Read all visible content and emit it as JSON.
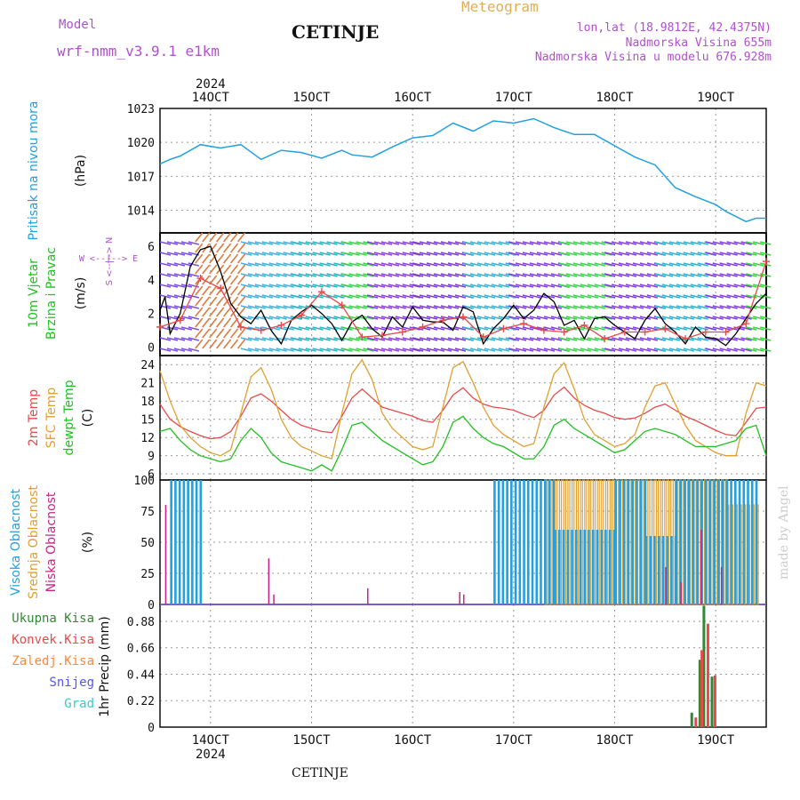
{
  "header": {
    "model_label": "Model",
    "model_name": "wrf-nmm_v3.9.1 e1km",
    "station": "CETINJE",
    "meteogram": "Meteogram",
    "lonlat": "lon,lat (18.9812E, 42.4375N)",
    "altitude": "Nadmorska Visina 655m",
    "model_altitude": "Nadmorska Visina u modelu 676.928m"
  },
  "footer": {
    "station": "CETINJE",
    "watermark": "made by Angel"
  },
  "colors": {
    "pressure": "#22a0e0",
    "wind_black": "#000000",
    "t2m": "#e84a4a",
    "tsfc": "#e0a030",
    "dewpt": "#20c020",
    "high": "#22a0e0",
    "mid": "#e0a030",
    "low": "#cc2288",
    "total": "#338833",
    "conv": "#e84a4a",
    "frz": "#ff8833",
    "snow": "#5555ee",
    "grad": "#33cccc",
    "grid": "#999999"
  },
  "time_axis": {
    "year": "2024",
    "labels": [
      "14OCT",
      "15OCT",
      "16OCT",
      "17OCT",
      "18OCT",
      "19OCT"
    ],
    "start": 13.5,
    "end": 19.5
  },
  "chart_data": [
    {
      "type": "line",
      "title": "",
      "ylabel": "(hPa)",
      "side_label": "Pritisak na nivou mora",
      "ylim": [
        1012,
        1023
      ],
      "yticks": [
        "1023",
        "1020",
        "1017",
        "1014"
      ],
      "series": [
        {
          "x": [
            13.5,
            13.6,
            13.7,
            13.9,
            14.1,
            14.3,
            14.5,
            14.7,
            14.9,
            15.1,
            15.3,
            15.4,
            15.6,
            15.8,
            16.0,
            16.2,
            16.4,
            16.6,
            16.8,
            17.0,
            17.2,
            17.4,
            17.6,
            17.8,
            18.0,
            18.2,
            18.4,
            18.6,
            18.8,
            19.0,
            19.1,
            19.3,
            19.4,
            19.5
          ],
          "values": [
            1018.1,
            1018.5,
            1018.8,
            1019.8,
            1019.5,
            1019.8,
            1018.5,
            1019.3,
            1019.1,
            1018.6,
            1019.3,
            1018.9,
            1018.7,
            1019.6,
            1020.4,
            1020.6,
            1021.7,
            1021.0,
            1021.9,
            1021.7,
            1022.1,
            1021.3,
            1020.7,
            1020.7,
            1019.7,
            1018.7,
            1018.0,
            1016.0,
            1015.2,
            1014.5,
            1013.9,
            1013.0,
            1013.3,
            1013.3
          ]
        }
      ]
    },
    {
      "type": "line",
      "title": "",
      "ylabel": "(m/s)",
      "side_labels": [
        "10m Vjetar",
        "Brzina i Pravac"
      ],
      "compass": "W <--|--> E",
      "compass_v": "S <--|--> N",
      "ylim": [
        -0.5,
        6.8
      ],
      "yticks": [
        "6",
        "4",
        "2",
        "0"
      ],
      "series": [
        {
          "name": "",
          "x": [
            13.5,
            13.55,
            13.6,
            13.7,
            13.8,
            13.9,
            14.0,
            14.1,
            14.2,
            14.3,
            14.4,
            14.5,
            14.6,
            14.7,
            14.8,
            14.9,
            15.0,
            15.1,
            15.2,
            15.3,
            15.4,
            15.5,
            15.6,
            15.7,
            15.8,
            15.9,
            16.0,
            16.1,
            16.2,
            16.3,
            16.4,
            16.5,
            16.6,
            16.7,
            16.8,
            16.9,
            17.0,
            17.1,
            17.2,
            17.3,
            17.4,
            17.5,
            17.6,
            17.7,
            17.8,
            17.9,
            18.0,
            18.1,
            18.2,
            18.3,
            18.4,
            18.5,
            18.6,
            18.7,
            18.8,
            18.9,
            19.0,
            19.1,
            19.2,
            19.3,
            19.4,
            19.5
          ],
          "values": [
            2.2,
            3.0,
            0.8,
            2.0,
            4.8,
            5.8,
            6.0,
            4.5,
            2.6,
            1.8,
            1.4,
            2.2,
            1.0,
            0.2,
            1.6,
            2.1,
            2.5,
            2.0,
            1.4,
            0.4,
            1.5,
            1.9,
            1.1,
            0.6,
            1.8,
            1.2,
            2.4,
            1.6,
            1.5,
            1.5,
            1.0,
            2.4,
            2.1,
            0.2,
            1.1,
            1.7,
            2.5,
            1.7,
            2.2,
            3.2,
            2.7,
            1.3,
            1.6,
            0.5,
            1.7,
            1.8,
            1.3,
            0.9,
            0.5,
            1.6,
            2.3,
            1.4,
            0.9,
            0.2,
            1.2,
            0.6,
            0.5,
            0.1,
            0.8,
            1.7,
            2.6,
            3.2
          ]
        },
        {
          "name": "",
          "x": [
            13.5,
            13.7,
            13.9,
            14.1,
            14.3,
            14.5,
            14.7,
            14.9,
            15.1,
            15.3,
            15.5,
            15.7,
            15.9,
            16.1,
            16.3,
            16.5,
            16.7,
            16.9,
            17.1,
            17.3,
            17.5,
            17.7,
            17.9,
            18.1,
            18.3,
            18.5,
            18.7,
            18.9,
            19.1,
            19.3,
            19.5
          ],
          "values": [
            1.2,
            1.6,
            4.1,
            3.5,
            1.2,
            1.0,
            1.3,
            1.9,
            3.3,
            2.5,
            0.6,
            0.7,
            0.9,
            1.2,
            1.6,
            1.8,
            0.6,
            1.1,
            1.4,
            1.0,
            0.9,
            1.3,
            0.5,
            0.9,
            0.9,
            1.1,
            0.5,
            0.9,
            0.9,
            1.4,
            5.1
          ]
        }
      ]
    },
    {
      "type": "line",
      "title": "",
      "ylabel": "(C)",
      "side_labels": [
        "2m Temp",
        "SFC Temp",
        "dewpt Temp"
      ],
      "ylim": [
        5,
        25.5
      ],
      "yticks": [
        "24",
        "21",
        "18",
        "15",
        "12",
        "9",
        "6"
      ],
      "series": [
        {
          "name": "2m Temp",
          "x": [
            13.5,
            13.6,
            13.7,
            13.8,
            13.9,
            14.0,
            14.1,
            14.2,
            14.3,
            14.4,
            14.5,
            14.6,
            14.7,
            14.8,
            14.9,
            15.0,
            15.1,
            15.2,
            15.3,
            15.4,
            15.5,
            15.6,
            15.7,
            15.8,
            15.9,
            16.0,
            16.1,
            16.2,
            16.3,
            16.4,
            16.5,
            16.6,
            16.7,
            16.8,
            16.9,
            17.0,
            17.1,
            17.2,
            17.3,
            17.4,
            17.5,
            17.6,
            17.7,
            17.8,
            17.9,
            18.0,
            18.1,
            18.2,
            18.3,
            18.4,
            18.5,
            18.6,
            18.7,
            18.8,
            18.9,
            19.0,
            19.1,
            19.2,
            19.3,
            19.4,
            19.5
          ],
          "values": [
            17.5,
            15.0,
            13.8,
            13.0,
            12.3,
            11.8,
            12.0,
            13.0,
            15.5,
            18.5,
            19.2,
            18.0,
            16.5,
            15.0,
            14.0,
            13.5,
            13.0,
            12.8,
            15.5,
            18.5,
            20.0,
            18.5,
            17.0,
            16.5,
            16.0,
            15.5,
            14.8,
            14.5,
            16.5,
            19.0,
            20.2,
            18.5,
            17.5,
            17.0,
            16.8,
            16.5,
            15.8,
            15.3,
            16.5,
            19.0,
            20.3,
            18.5,
            17.3,
            16.5,
            16.0,
            15.3,
            15.0,
            15.2,
            16.0,
            17.0,
            17.5,
            16.5,
            15.5,
            14.8,
            14.0,
            13.2,
            12.5,
            12.3,
            14.5,
            16.8,
            17.0
          ]
        },
        {
          "name": "SFC Temp",
          "x": [
            13.5,
            13.6,
            13.7,
            13.8,
            13.9,
            14.0,
            14.1,
            14.2,
            14.3,
            14.4,
            14.5,
            14.6,
            14.7,
            14.8,
            14.9,
            15.0,
            15.1,
            15.2,
            15.3,
            15.4,
            15.5,
            15.6,
            15.7,
            15.8,
            15.9,
            16.0,
            16.1,
            16.2,
            16.3,
            16.4,
            16.5,
            16.6,
            16.7,
            16.8,
            16.9,
            17.0,
            17.1,
            17.2,
            17.3,
            17.4,
            17.5,
            17.6,
            17.7,
            17.8,
            17.9,
            18.0,
            18.1,
            18.2,
            18.3,
            18.4,
            18.5,
            18.6,
            18.7,
            18.8,
            18.9,
            19.0,
            19.1,
            19.2,
            19.3,
            19.4,
            19.5
          ],
          "values": [
            23.0,
            18.0,
            14.0,
            12.0,
            10.5,
            9.5,
            9.0,
            10.0,
            16.0,
            22.0,
            23.5,
            20.0,
            15.0,
            12.0,
            10.5,
            9.8,
            9.0,
            8.5,
            16.0,
            22.5,
            24.8,
            21.5,
            16.0,
            13.5,
            12.0,
            10.5,
            10.0,
            10.5,
            17.0,
            23.5,
            24.5,
            21.0,
            17.0,
            14.0,
            12.5,
            11.5,
            10.5,
            11.0,
            17.0,
            22.5,
            24.3,
            20.0,
            15.0,
            12.5,
            11.5,
            10.5,
            11.0,
            12.5,
            17.0,
            20.5,
            21.0,
            17.5,
            14.0,
            11.5,
            10.5,
            9.5,
            9.0,
            9.0,
            16.0,
            21.0,
            20.5
          ]
        },
        {
          "name": "dewpt Temp",
          "x": [
            13.5,
            13.6,
            13.7,
            13.8,
            13.9,
            14.0,
            14.1,
            14.2,
            14.3,
            14.4,
            14.5,
            14.6,
            14.7,
            14.8,
            14.9,
            15.0,
            15.1,
            15.2,
            15.3,
            15.4,
            15.5,
            15.6,
            15.7,
            15.8,
            15.9,
            16.0,
            16.1,
            16.2,
            16.3,
            16.4,
            16.5,
            16.6,
            16.7,
            16.8,
            16.9,
            17.0,
            17.1,
            17.2,
            17.3,
            17.4,
            17.5,
            17.6,
            17.7,
            17.8,
            17.9,
            18.0,
            18.1,
            18.2,
            18.3,
            18.4,
            18.5,
            18.6,
            18.7,
            18.8,
            18.9,
            19.0,
            19.1,
            19.2,
            19.3,
            19.4,
            19.5
          ],
          "values": [
            13.0,
            13.5,
            11.5,
            10.0,
            9.0,
            8.5,
            8.0,
            8.5,
            11.5,
            13.5,
            12.0,
            9.5,
            8.0,
            7.5,
            7.0,
            6.5,
            7.5,
            6.5,
            10.0,
            14.0,
            14.5,
            13.0,
            11.5,
            10.5,
            9.5,
            8.5,
            7.5,
            8.0,
            10.5,
            14.5,
            15.5,
            13.5,
            12.0,
            11.0,
            10.5,
            9.5,
            8.5,
            8.5,
            10.5,
            14.0,
            15.0,
            13.5,
            12.5,
            11.5,
            10.5,
            9.5,
            10.0,
            11.5,
            13.0,
            13.5,
            13.0,
            12.5,
            11.5,
            10.5,
            10.5,
            10.5,
            11.0,
            11.5,
            13.5,
            14.0,
            9.0
          ]
        }
      ]
    },
    {
      "type": "bar",
      "title": "",
      "ylabel": "(%)",
      "side_labels": [
        "Visoka Oblacnost",
        "Srednja Oblacnost",
        "Niska Oblacnost"
      ],
      "ylim": [
        0,
        100
      ],
      "yticks": [
        "100",
        "75",
        "50",
        "25",
        "0"
      ],
      "high_ranges": [
        [
          13.6,
          13.9,
          100
        ],
        [
          16.8,
          17.4,
          100
        ],
        [
          17.4,
          18.0,
          60
        ],
        [
          18.0,
          18.3,
          100
        ],
        [
          18.3,
          18.6,
          55
        ],
        [
          18.6,
          19.4,
          100
        ]
      ],
      "mid_ranges": [
        [
          17.3,
          19.1,
          100
        ],
        [
          19.1,
          19.4,
          80
        ]
      ],
      "low_bars": [
        {
          "x": 13.55,
          "v": 80
        },
        {
          "x": 14.57,
          "v": 37
        },
        {
          "x": 14.62,
          "v": 8
        },
        {
          "x": 15.55,
          "v": 13
        },
        {
          "x": 16.46,
          "v": 10
        },
        {
          "x": 16.5,
          "v": 8
        },
        {
          "x": 18.5,
          "v": 30
        },
        {
          "x": 18.65,
          "v": 18
        },
        {
          "x": 18.85,
          "v": 60
        },
        {
          "x": 19.05,
          "v": 30
        }
      ]
    },
    {
      "type": "bar",
      "title": "",
      "ylabel": "1hr Precip (mm)",
      "side_labels": [
        "Ukupna Kisa",
        "Konvek.Kisa",
        "Zaledj.Kisa",
        "Snijeg",
        "Grad"
      ],
      "ylim": [
        0,
        1.02
      ],
      "yticks": [
        "0.88",
        "0.66",
        "0.44",
        "0.22",
        "0"
      ],
      "total": [
        {
          "x": 18.75,
          "v": 0.12
        },
        {
          "x": 18.83,
          "v": 0.56
        },
        {
          "x": 18.87,
          "v": 1.01
        },
        {
          "x": 18.95,
          "v": 0.42
        }
      ],
      "conv": [
        {
          "x": 18.79,
          "v": 0.08
        },
        {
          "x": 18.85,
          "v": 0.64
        },
        {
          "x": 18.91,
          "v": 0.86
        },
        {
          "x": 18.98,
          "v": 0.43
        }
      ]
    }
  ]
}
